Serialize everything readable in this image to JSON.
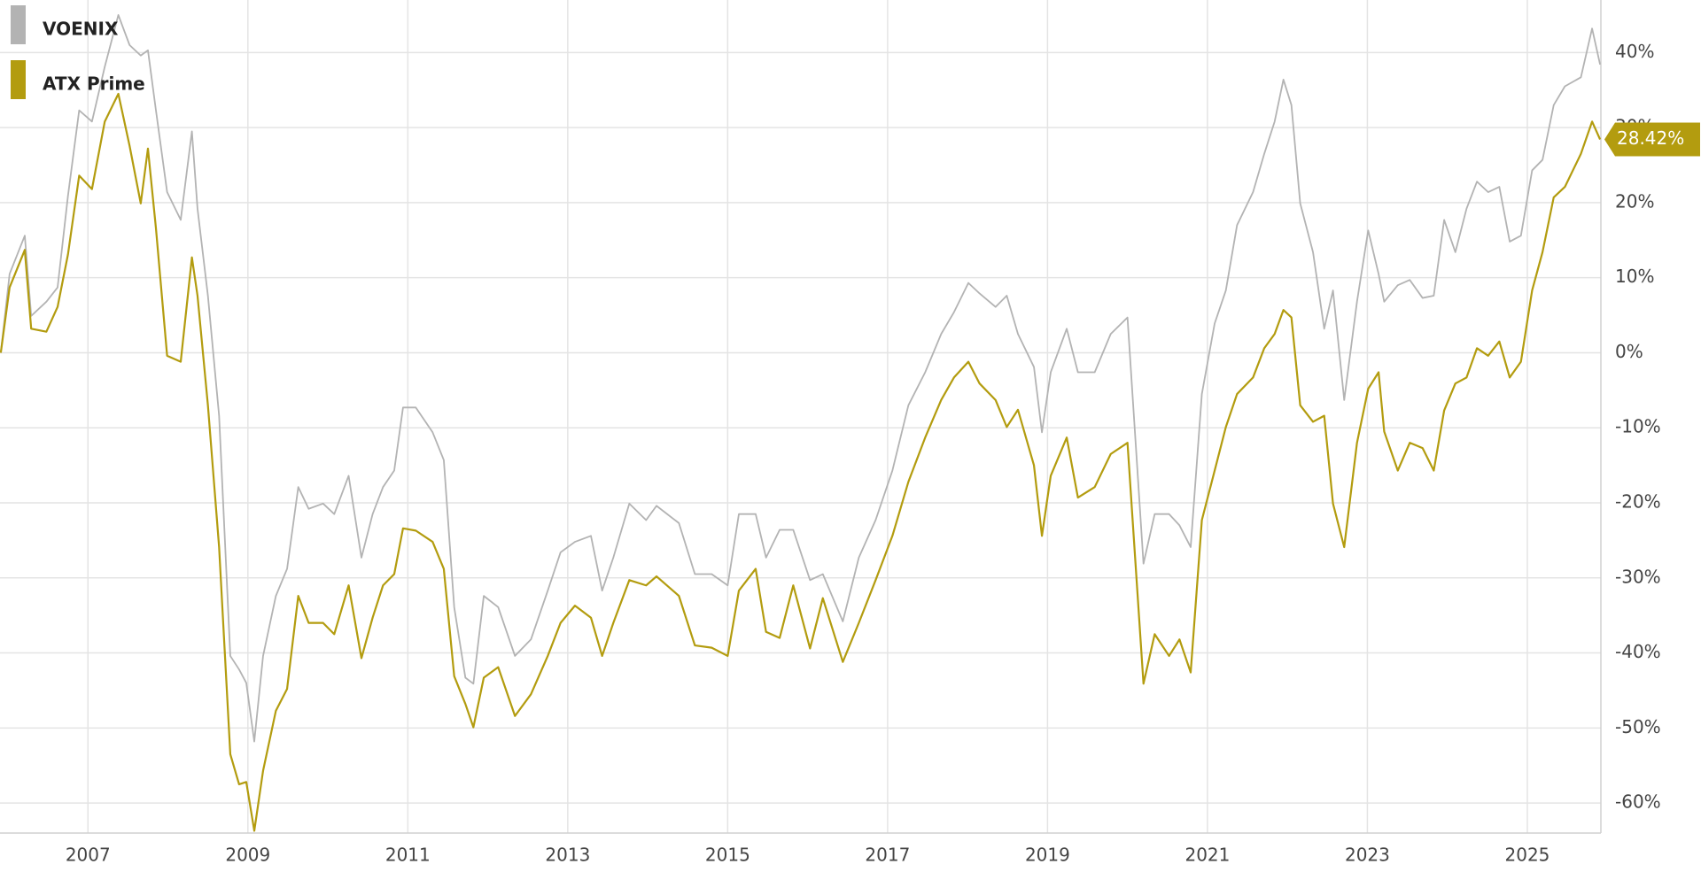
{
  "chart_data": {
    "type": "line",
    "x": [
      2005.91,
      2006.02,
      2006.21,
      2006.29,
      2006.48,
      2006.62,
      2006.75,
      2006.89,
      2007.05,
      2007.21,
      2007.38,
      2007.52,
      2007.66,
      2007.75,
      2007.85,
      2007.99,
      2008.16,
      2008.3,
      2008.37,
      2008.5,
      2008.64,
      2008.78,
      2008.89,
      2008.98,
      2009.08,
      2009.19,
      2009.35,
      2009.49,
      2009.63,
      2009.76,
      2009.94,
      2010.08,
      2010.26,
      2010.42,
      2010.56,
      2010.69,
      2010.83,
      2010.94,
      2011.1,
      2011.31,
      2011.45,
      2011.58,
      2011.72,
      2011.82,
      2011.95,
      2012.13,
      2012.34,
      2012.54,
      2012.75,
      2012.91,
      2013.09,
      2013.29,
      2013.43,
      2013.57,
      2013.77,
      2013.98,
      2014.11,
      2014.39,
      2014.59,
      2014.8,
      2015.0,
      2015.14,
      2015.35,
      2015.48,
      2015.65,
      2015.82,
      2016.03,
      2016.19,
      2016.44,
      2016.64,
      2016.85,
      2017.06,
      2017.26,
      2017.47,
      2017.67,
      2017.83,
      2018.01,
      2018.15,
      2018.35,
      2018.49,
      2018.63,
      2018.83,
      2018.93,
      2019.04,
      2019.24,
      2019.38,
      2019.59,
      2019.79,
      2020.0,
      2020.2,
      2020.34,
      2020.52,
      2020.65,
      2020.79,
      2020.93,
      2021.09,
      2021.23,
      2021.37,
      2021.57,
      2021.71,
      2021.84,
      2021.95,
      2022.05,
      2022.16,
      2022.32,
      2022.46,
      2022.57,
      2022.71,
      2022.87,
      2023.01,
      2023.14,
      2023.21,
      2023.38,
      2023.53,
      2023.69,
      2023.83,
      2023.96,
      2024.1,
      2024.24,
      2024.37,
      2024.51,
      2024.65,
      2024.78,
      2024.92,
      2025.06,
      2025.19,
      2025.33,
      2025.47,
      2025.67,
      2025.81,
      2025.91
    ],
    "series": [
      {
        "name": "VOENIX",
        "color": "#b3b3b3",
        "values": [
          0,
          10.5,
          15.6,
          4.9,
          6.8,
          8.7,
          20.9,
          32.3,
          30.8,
          38.1,
          45,
          41,
          39.6,
          40.3,
          32.3,
          21.4,
          17.7,
          29.5,
          19.2,
          7.6,
          -8.4,
          -40.4,
          -42.2,
          -44,
          -51.8,
          -40.4,
          -32.4,
          -28.8,
          -17.9,
          -20.8,
          -20.1,
          -21.5,
          -16.4,
          -27.3,
          -21.5,
          -17.9,
          -15.7,
          -7.3,
          -7.3,
          -10.6,
          -14.3,
          -33.9,
          -43.3,
          -44.1,
          -32.4,
          -33.9,
          -40.4,
          -38.2,
          -31.7,
          -26.6,
          -25.2,
          -24.4,
          -31.7,
          -27.3,
          -20.1,
          -22.3,
          -20.4,
          -22.7,
          -29.5,
          -29.5,
          -31,
          -21.5,
          -21.5,
          -27.3,
          -23.6,
          -23.6,
          -30.3,
          -29.5,
          -35.8,
          -27.3,
          -22.3,
          -15.7,
          -7,
          -2.6,
          2.5,
          5.4,
          9.3,
          7.9,
          6.1,
          7.6,
          2.5,
          -1.9,
          -10.6,
          -2.6,
          3.2,
          -2.6,
          -2.6,
          2.5,
          4.7,
          -28.1,
          -21.5,
          -21.5,
          -23,
          -25.9,
          -5.5,
          3.9,
          8.3,
          17,
          21.4,
          26.5,
          30.8,
          36.4,
          33,
          19.9,
          13.4,
          3.2,
          8.3,
          -6.3,
          6.8,
          16.3,
          10.5,
          6.8,
          9,
          9.7,
          7.3,
          7.6,
          17.7,
          13.4,
          19.2,
          22.8,
          21.4,
          22.1,
          14.8,
          15.6,
          24.3,
          25.7,
          33,
          35.5,
          36.7,
          43.2,
          38.4
        ]
      },
      {
        "name": "ATX Prime",
        "color": "#b39c0f",
        "last_label": "28.42%",
        "values": [
          0,
          8.7,
          13.7,
          3.2,
          2.8,
          6.1,
          13.1,
          23.6,
          21.8,
          30.8,
          34.5,
          27.6,
          19.9,
          27.2,
          16.6,
          -0.4,
          -1.2,
          12.7,
          7.6,
          -7,
          -25.9,
          -53.5,
          -57.5,
          -57.2,
          -63.7,
          -55.7,
          -47.7,
          -44.8,
          -32.4,
          -36,
          -36,
          -37.5,
          -31,
          -40.7,
          -35.3,
          -31,
          -29.5,
          -23.4,
          -23.7,
          -25.2,
          -28.8,
          -43.1,
          -46.8,
          -49.9,
          -43.3,
          -41.9,
          -48.4,
          -45.5,
          -40.4,
          -36,
          -33.7,
          -35.3,
          -40.4,
          -36,
          -30.3,
          -31,
          -29.8,
          -32.4,
          -39,
          -39.3,
          -40.4,
          -31.7,
          -28.8,
          -37.2,
          -38,
          -31,
          -39.4,
          -32.7,
          -41.2,
          -36,
          -30.3,
          -24.4,
          -17.2,
          -11.3,
          -6.3,
          -3.3,
          -1.2,
          -4.1,
          -6.3,
          -9.9,
          -7.6,
          -15,
          -24.4,
          -16.4,
          -11.3,
          -19.3,
          -17.9,
          -13.5,
          -12,
          -44.1,
          -37.5,
          -40.4,
          -38.2,
          -42.6,
          -22.3,
          -15.7,
          -9.9,
          -5.5,
          -3.3,
          0.6,
          2.5,
          5.7,
          4.7,
          -7,
          -9.2,
          -8.4,
          -20.1,
          -25.9,
          -12,
          -4.8,
          -2.6,
          -10.5,
          -15.7,
          -12,
          -12.7,
          -15.7,
          -7.7,
          -4.1,
          -3.3,
          0.6,
          -0.4,
          1.5,
          -3.3,
          -1.2,
          8.3,
          13.4,
          20.7,
          22.1,
          26.5,
          30.8,
          28.42
        ]
      }
    ],
    "xlim": [
      2005.9,
      2025.92
    ],
    "xticks": [
      2007,
      2009,
      2011,
      2013,
      2015,
      2017,
      2019,
      2021,
      2023,
      2025
    ],
    "ylim": [
      -64,
      47
    ],
    "yticks": [
      {
        "value": -60,
        "label": "-60%"
      },
      {
        "value": -50,
        "label": "-50%"
      },
      {
        "value": -40,
        "label": "-40%"
      },
      {
        "value": -30,
        "label": "-30%"
      },
      {
        "value": -20,
        "label": "-20%"
      },
      {
        "value": -10,
        "label": "-10%"
      },
      {
        "value": 0,
        "label": "0%"
      },
      {
        "value": 10,
        "label": "10%"
      },
      {
        "value": 20,
        "label": "20%"
      },
      {
        "value": 30,
        "label": "30%"
      },
      {
        "value": 40,
        "label": "40%"
      }
    ],
    "grid": true,
    "legend": "top-left"
  }
}
